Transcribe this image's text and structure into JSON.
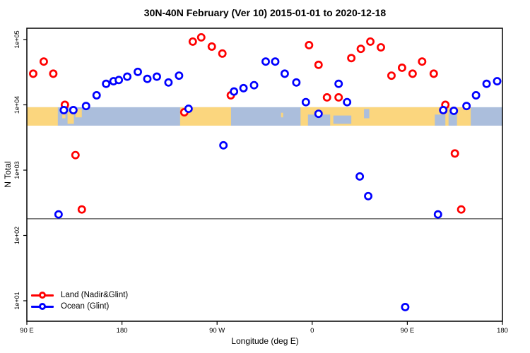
{
  "title": "30N-40N February (Ver 10)   2015-01-01 to 2020-12-18",
  "chart_data": {
    "type": "scatter",
    "title": "30N-40N February (Ver 10)   2015-01-01 to 2020-12-18",
    "xlabel": "Longitude (deg E)",
    "ylabel": "N Total",
    "x_axis": {
      "range": [
        90,
        540
      ],
      "ticks": [
        90,
        180,
        270,
        360,
        450,
        540
      ],
      "tick_labels": [
        "90 E",
        "180",
        "90 W",
        "0",
        "90 E",
        "180"
      ],
      "note": "longitude axis wraps eastward from 90E through 180, 90W, 0, 90E to 180"
    },
    "y_axis": {
      "scale": "log",
      "ticks": [
        100000,
        10000,
        1000,
        100,
        10
      ],
      "tick_labels": [
        "1e+05",
        "1e+04",
        "1e+03",
        "1e+02",
        "1e+01"
      ]
    },
    "grid": false,
    "threshold_line": {
      "value": 180,
      "color": "#4d4d4d"
    },
    "map_band": {
      "top_value": 9200,
      "bottom_value": 4800,
      "land_color": "#fbd67e",
      "ocean_color": "#abbedc",
      "land_segments": [
        [
          90,
          119.3
        ],
        [
          235,
          283.2
        ],
        [
          349,
          510
        ]
      ],
      "island_patches": [
        {
          "x": [
            123.5,
            126.5
          ],
          "y": [
            0,
            0.6
          ]
        },
        {
          "x": [
            128.5,
            134.5
          ],
          "y": [
            0.25,
            0.9
          ]
        },
        {
          "x": [
            136,
            142
          ],
          "y": [
            0.1,
            0.55
          ]
        },
        {
          "x": [
            330.5,
            332.5
          ],
          "y": [
            0.3,
            0.55
          ]
        }
      ],
      "sea_patches": [
        {
          "x": [
            356,
            377
          ],
          "y": [
            0.4,
            1
          ]
        },
        {
          "x": [
            380,
            397
          ],
          "y": [
            0.45,
            0.9
          ]
        },
        {
          "x": [
            409,
            414
          ],
          "y": [
            0.1,
            0.6
          ]
        },
        {
          "x": [
            476,
            486
          ],
          "y": [
            0.4,
            1
          ]
        },
        {
          "x": [
            489,
            497
          ],
          "y": [
            0.3,
            1
          ]
        }
      ]
    },
    "legend": {
      "position": "bottom-left"
    },
    "series": [
      {
        "name": "Land (Nadir&Glint)",
        "color": "#ff0000",
        "marker": "open-circle",
        "points": [
          {
            "lon": 96,
            "n": 30000
          },
          {
            "lon": 106,
            "n": 46000
          },
          {
            "lon": 115,
            "n": 30000
          },
          {
            "lon": 126,
            "n": 10000
          },
          {
            "lon": 136,
            "n": 1700
          },
          {
            "lon": 142,
            "n": 250
          },
          {
            "lon": 239,
            "n": 7700
          },
          {
            "lon": 247,
            "n": 93000
          },
          {
            "lon": 255,
            "n": 108000
          },
          {
            "lon": 265,
            "n": 78000
          },
          {
            "lon": 275,
            "n": 61000
          },
          {
            "lon": 283,
            "n": 14000
          },
          {
            "lon": 357,
            "n": 82000
          },
          {
            "lon": 366,
            "n": 41000
          },
          {
            "lon": 374,
            "n": 13000
          },
          {
            "lon": 385,
            "n": 13000
          },
          {
            "lon": 397,
            "n": 52000
          },
          {
            "lon": 406,
            "n": 72000
          },
          {
            "lon": 415,
            "n": 93000
          },
          {
            "lon": 425,
            "n": 76000
          },
          {
            "lon": 435,
            "n": 28000
          },
          {
            "lon": 445,
            "n": 37000
          },
          {
            "lon": 455,
            "n": 30000
          },
          {
            "lon": 464,
            "n": 46000
          },
          {
            "lon": 475,
            "n": 30000
          },
          {
            "lon": 486,
            "n": 10000
          },
          {
            "lon": 495,
            "n": 1800
          },
          {
            "lon": 501,
            "n": 250
          }
        ]
      },
      {
        "name": "Ocean (Glint)",
        "color": "#0000ff",
        "marker": "open-circle",
        "points": [
          {
            "lon": 120,
            "n": 210
          },
          {
            "lon": 125,
            "n": 8300
          },
          {
            "lon": 134,
            "n": 8300
          },
          {
            "lon": 146,
            "n": 9600
          },
          {
            "lon": 156,
            "n": 14000
          },
          {
            "lon": 165,
            "n": 21000
          },
          {
            "lon": 172,
            "n": 23000
          },
          {
            "lon": 177,
            "n": 24000
          },
          {
            "lon": 185,
            "n": 27000
          },
          {
            "lon": 195,
            "n": 32000
          },
          {
            "lon": 204,
            "n": 25000
          },
          {
            "lon": 213,
            "n": 27000
          },
          {
            "lon": 224,
            "n": 22000
          },
          {
            "lon": 234,
            "n": 28000
          },
          {
            "lon": 243,
            "n": 8700
          },
          {
            "lon": 276,
            "n": 2400
          },
          {
            "lon": 286,
            "n": 16000
          },
          {
            "lon": 295,
            "n": 18000
          },
          {
            "lon": 305,
            "n": 20000
          },
          {
            "lon": 316,
            "n": 46000
          },
          {
            "lon": 325,
            "n": 46000
          },
          {
            "lon": 334,
            "n": 30000
          },
          {
            "lon": 345,
            "n": 22000
          },
          {
            "lon": 354,
            "n": 11000
          },
          {
            "lon": 366,
            "n": 7300
          },
          {
            "lon": 385,
            "n": 21000
          },
          {
            "lon": 393,
            "n": 11000
          },
          {
            "lon": 405,
            "n": 800
          },
          {
            "lon": 413,
            "n": 400
          },
          {
            "lon": 448,
            "n": 8
          },
          {
            "lon": 479,
            "n": 210
          },
          {
            "lon": 484,
            "n": 8300
          },
          {
            "lon": 494,
            "n": 8100
          },
          {
            "lon": 506,
            "n": 9600
          },
          {
            "lon": 515,
            "n": 14000
          },
          {
            "lon": 525,
            "n": 21000
          },
          {
            "lon": 535,
            "n": 23000
          }
        ]
      }
    ]
  }
}
